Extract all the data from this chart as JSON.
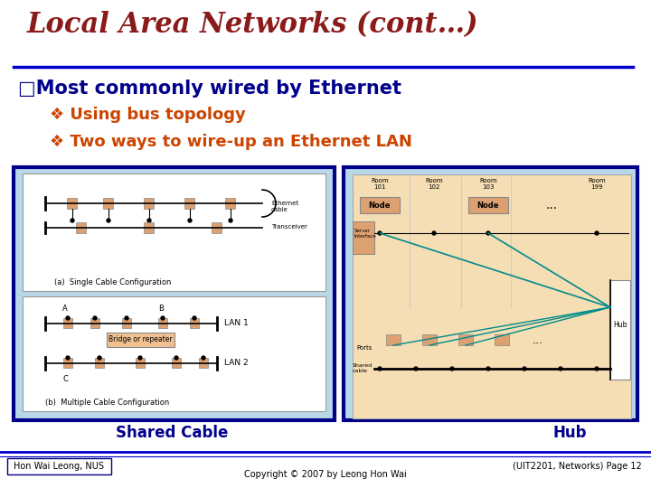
{
  "title": "Local Area Networks (cont…)",
  "title_color": "#8B1A1A",
  "title_fontsize": 22,
  "separator_color": "#0000CC",
  "bullet1_text": "□Most commonly wired by Ethernet",
  "bullet1_color": "#00008B",
  "bullet1_fontsize": 15,
  "bullet1_bold": true,
  "sub_bullet1_text": "❖ Using bus topology",
  "sub_bullet1_color": "#CC4400",
  "sub_bullet1_fontsize": 13,
  "sub_bullet2_text": "❖ Two ways to wire-up an Ethernet LAN",
  "sub_bullet2_color": "#CC4400",
  "sub_bullet2_fontsize": 13,
  "left_box_border": "#00008B",
  "left_box_fill": "#B8D8E8",
  "right_box_border": "#00008B",
  "right_box_fill": "#B8D8E8",
  "inner_box_fill": "#FFFFFF",
  "diagram_inner_fill": "#F5DEB3",
  "shared_cable_text": "Shared Cable",
  "shared_cable_color": "#00008B",
  "shared_cable_fontsize": 12,
  "hub_text": "Hub",
  "hub_color": "#00008B",
  "hub_fontsize": 12,
  "footer_left": "Hon Wai Leong, NUS",
  "footer_center": "Copyright © 2007 by Leong Hon Wai",
  "footer_right": "(UIT2201, Networks) Page 12",
  "footer_color": "#000000",
  "footer_fontsize": 7,
  "background_color": "#FFFFFF",
  "node_color": "#DDA070",
  "transceiver_color": "#DDA070"
}
